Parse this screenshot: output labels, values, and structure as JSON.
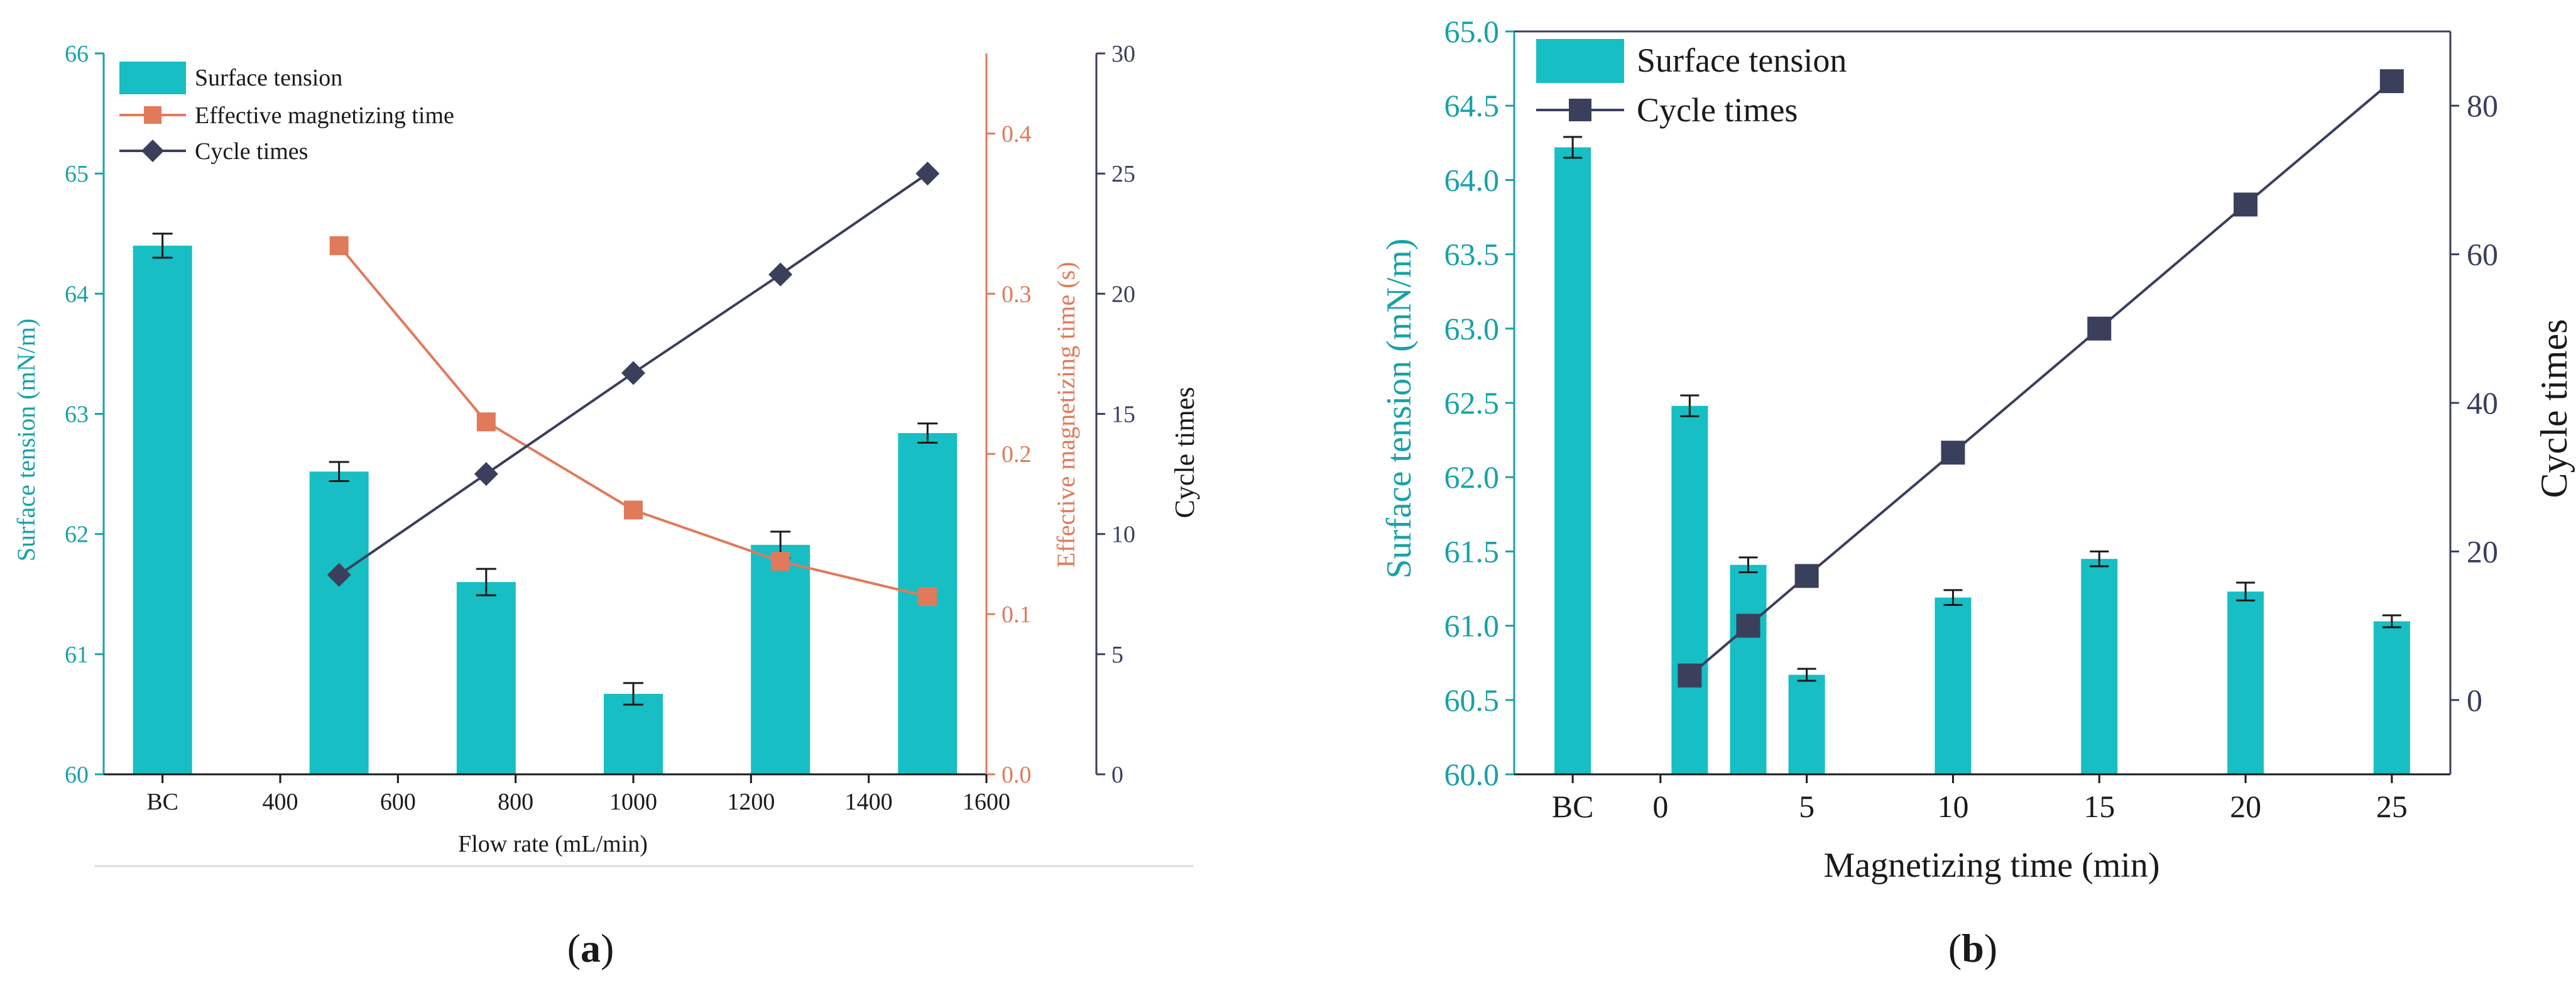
{
  "colors": {
    "bar": "#17bec4",
    "bar_stroke": "#0e9ea3",
    "teal_axis": "#17a2a8",
    "orange": "#e07a5a",
    "navy": "#3a3f5c",
    "black": "#1a1a1a"
  },
  "icons": {
    "marker_square": "square-marker-icon",
    "marker_diamond": "diamond-marker-icon"
  },
  "chart_data": [
    {
      "panel_label": "a",
      "type": "bar",
      "xlabel": "Flow rate (mL/min)",
      "x_tick_labels": [
        "BC",
        "400",
        "600",
        "800",
        "1000",
        "1200",
        "1400",
        "1600"
      ],
      "x_tick_values": [
        200,
        400,
        600,
        800,
        1000,
        1200,
        1400,
        1600
      ],
      "xlim": [
        100,
        1600
      ],
      "y_left": {
        "label": "Surface tension (mN/m)",
        "ylim": [
          60,
          66
        ],
        "ticks": [
          "60",
          "61",
          "62",
          "63",
          "64",
          "65",
          "66"
        ]
      },
      "y_right1": {
        "label": "Effective magnetizing time (s)",
        "ylim": [
          0,
          0.45
        ],
        "ticks": [
          "0.0",
          "0.1",
          "0.2",
          "0.3",
          "0.4"
        ]
      },
      "y_right2": {
        "label": "Cycle times",
        "ylim": [
          0,
          30
        ],
        "ticks": [
          "0",
          "5",
          "10",
          "15",
          "20",
          "25",
          "30"
        ]
      },
      "series": [
        {
          "name": "Surface tension",
          "kind": "bar",
          "axis": "left",
          "x": [
            200,
            500,
            750,
            1000,
            1250,
            1500
          ],
          "values": [
            64.4,
            62.52,
            61.6,
            60.67,
            61.91,
            62.84
          ],
          "errors": [
            0.1,
            0.08,
            0.11,
            0.09,
            0.11,
            0.08
          ]
        },
        {
          "name": "Effective magnetizing time",
          "kind": "line",
          "marker": "square",
          "axis": "right1",
          "x": [
            500,
            750,
            1000,
            1250,
            1500
          ],
          "values": [
            0.33,
            0.22,
            0.165,
            0.133,
            0.111
          ]
        },
        {
          "name": "Cycle times",
          "kind": "line",
          "marker": "diamond",
          "axis": "right2",
          "x": [
            500,
            750,
            1000,
            1250,
            1500
          ],
          "values": [
            8.3,
            12.5,
            16.7,
            20.8,
            25.0
          ]
        }
      ]
    },
    {
      "panel_label": "b",
      "type": "bar",
      "xlabel": "Magnetizing time (min)",
      "x_tick_labels": [
        "BC",
        "0",
        "5",
        "10",
        "15",
        "20",
        "25"
      ],
      "x_tick_values": [
        -3,
        0,
        5,
        10,
        15,
        20,
        25
      ],
      "xlim": [
        -5,
        27
      ],
      "y_left": {
        "label": "Surface tension (mN/m)",
        "ylim": [
          60,
          65
        ],
        "ticks": [
          "60.0",
          "60.5",
          "61.0",
          "61.5",
          "62.0",
          "62.5",
          "63.0",
          "63.5",
          "64.0",
          "64.5",
          "65.0"
        ]
      },
      "y_right": {
        "label": "Cycle times",
        "ylim": [
          -10,
          90
        ],
        "ticks": [
          "0",
          "20",
          "40",
          "60",
          "80"
        ]
      },
      "series": [
        {
          "name": "Surface tension",
          "kind": "bar",
          "axis": "left",
          "x": [
            -3,
            1,
            3,
            5,
            10,
            15,
            20,
            25
          ],
          "values": [
            64.22,
            62.48,
            61.41,
            60.67,
            61.19,
            61.45,
            61.23,
            61.03
          ],
          "errors": [
            0.07,
            0.07,
            0.05,
            0.04,
            0.05,
            0.05,
            0.06,
            0.04
          ]
        },
        {
          "name": "Cycle times",
          "kind": "line",
          "marker": "square",
          "axis": "right",
          "x": [
            1,
            3,
            5,
            10,
            15,
            20,
            25
          ],
          "values": [
            3.3,
            10.0,
            16.7,
            33.3,
            50.0,
            66.7,
            83.3
          ]
        }
      ]
    }
  ]
}
